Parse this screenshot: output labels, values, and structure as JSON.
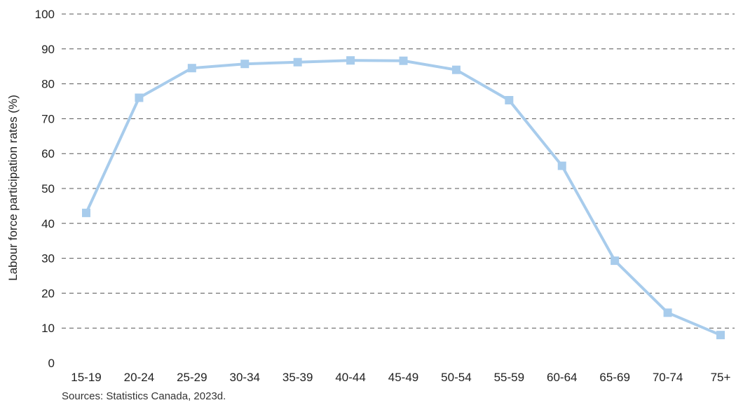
{
  "chart_data": {
    "type": "line",
    "title": "",
    "xlabel": "",
    "ylabel": "Labour force participation rates (%)",
    "categories": [
      "15-19",
      "20-24",
      "25-29",
      "30-34",
      "35-39",
      "40-44",
      "45-49",
      "50-54",
      "55-59",
      "60-64",
      "65-69",
      "70-74",
      "75+"
    ],
    "series": [
      {
        "values": [
          43.0,
          76.0,
          84.5,
          85.7,
          86.2,
          86.7,
          86.6,
          84.0,
          75.3,
          56.5,
          29.3,
          14.4,
          8.0
        ],
        "color": "#a8ccec"
      }
    ],
    "ylim": [
      0,
      100
    ],
    "yticks": [
      0,
      10,
      20,
      30,
      40,
      50,
      60,
      70,
      80,
      90,
      100
    ],
    "grid": "horizontal-dashed",
    "legend": "none",
    "source": "Sources: Statistics Canada, 2023d."
  }
}
